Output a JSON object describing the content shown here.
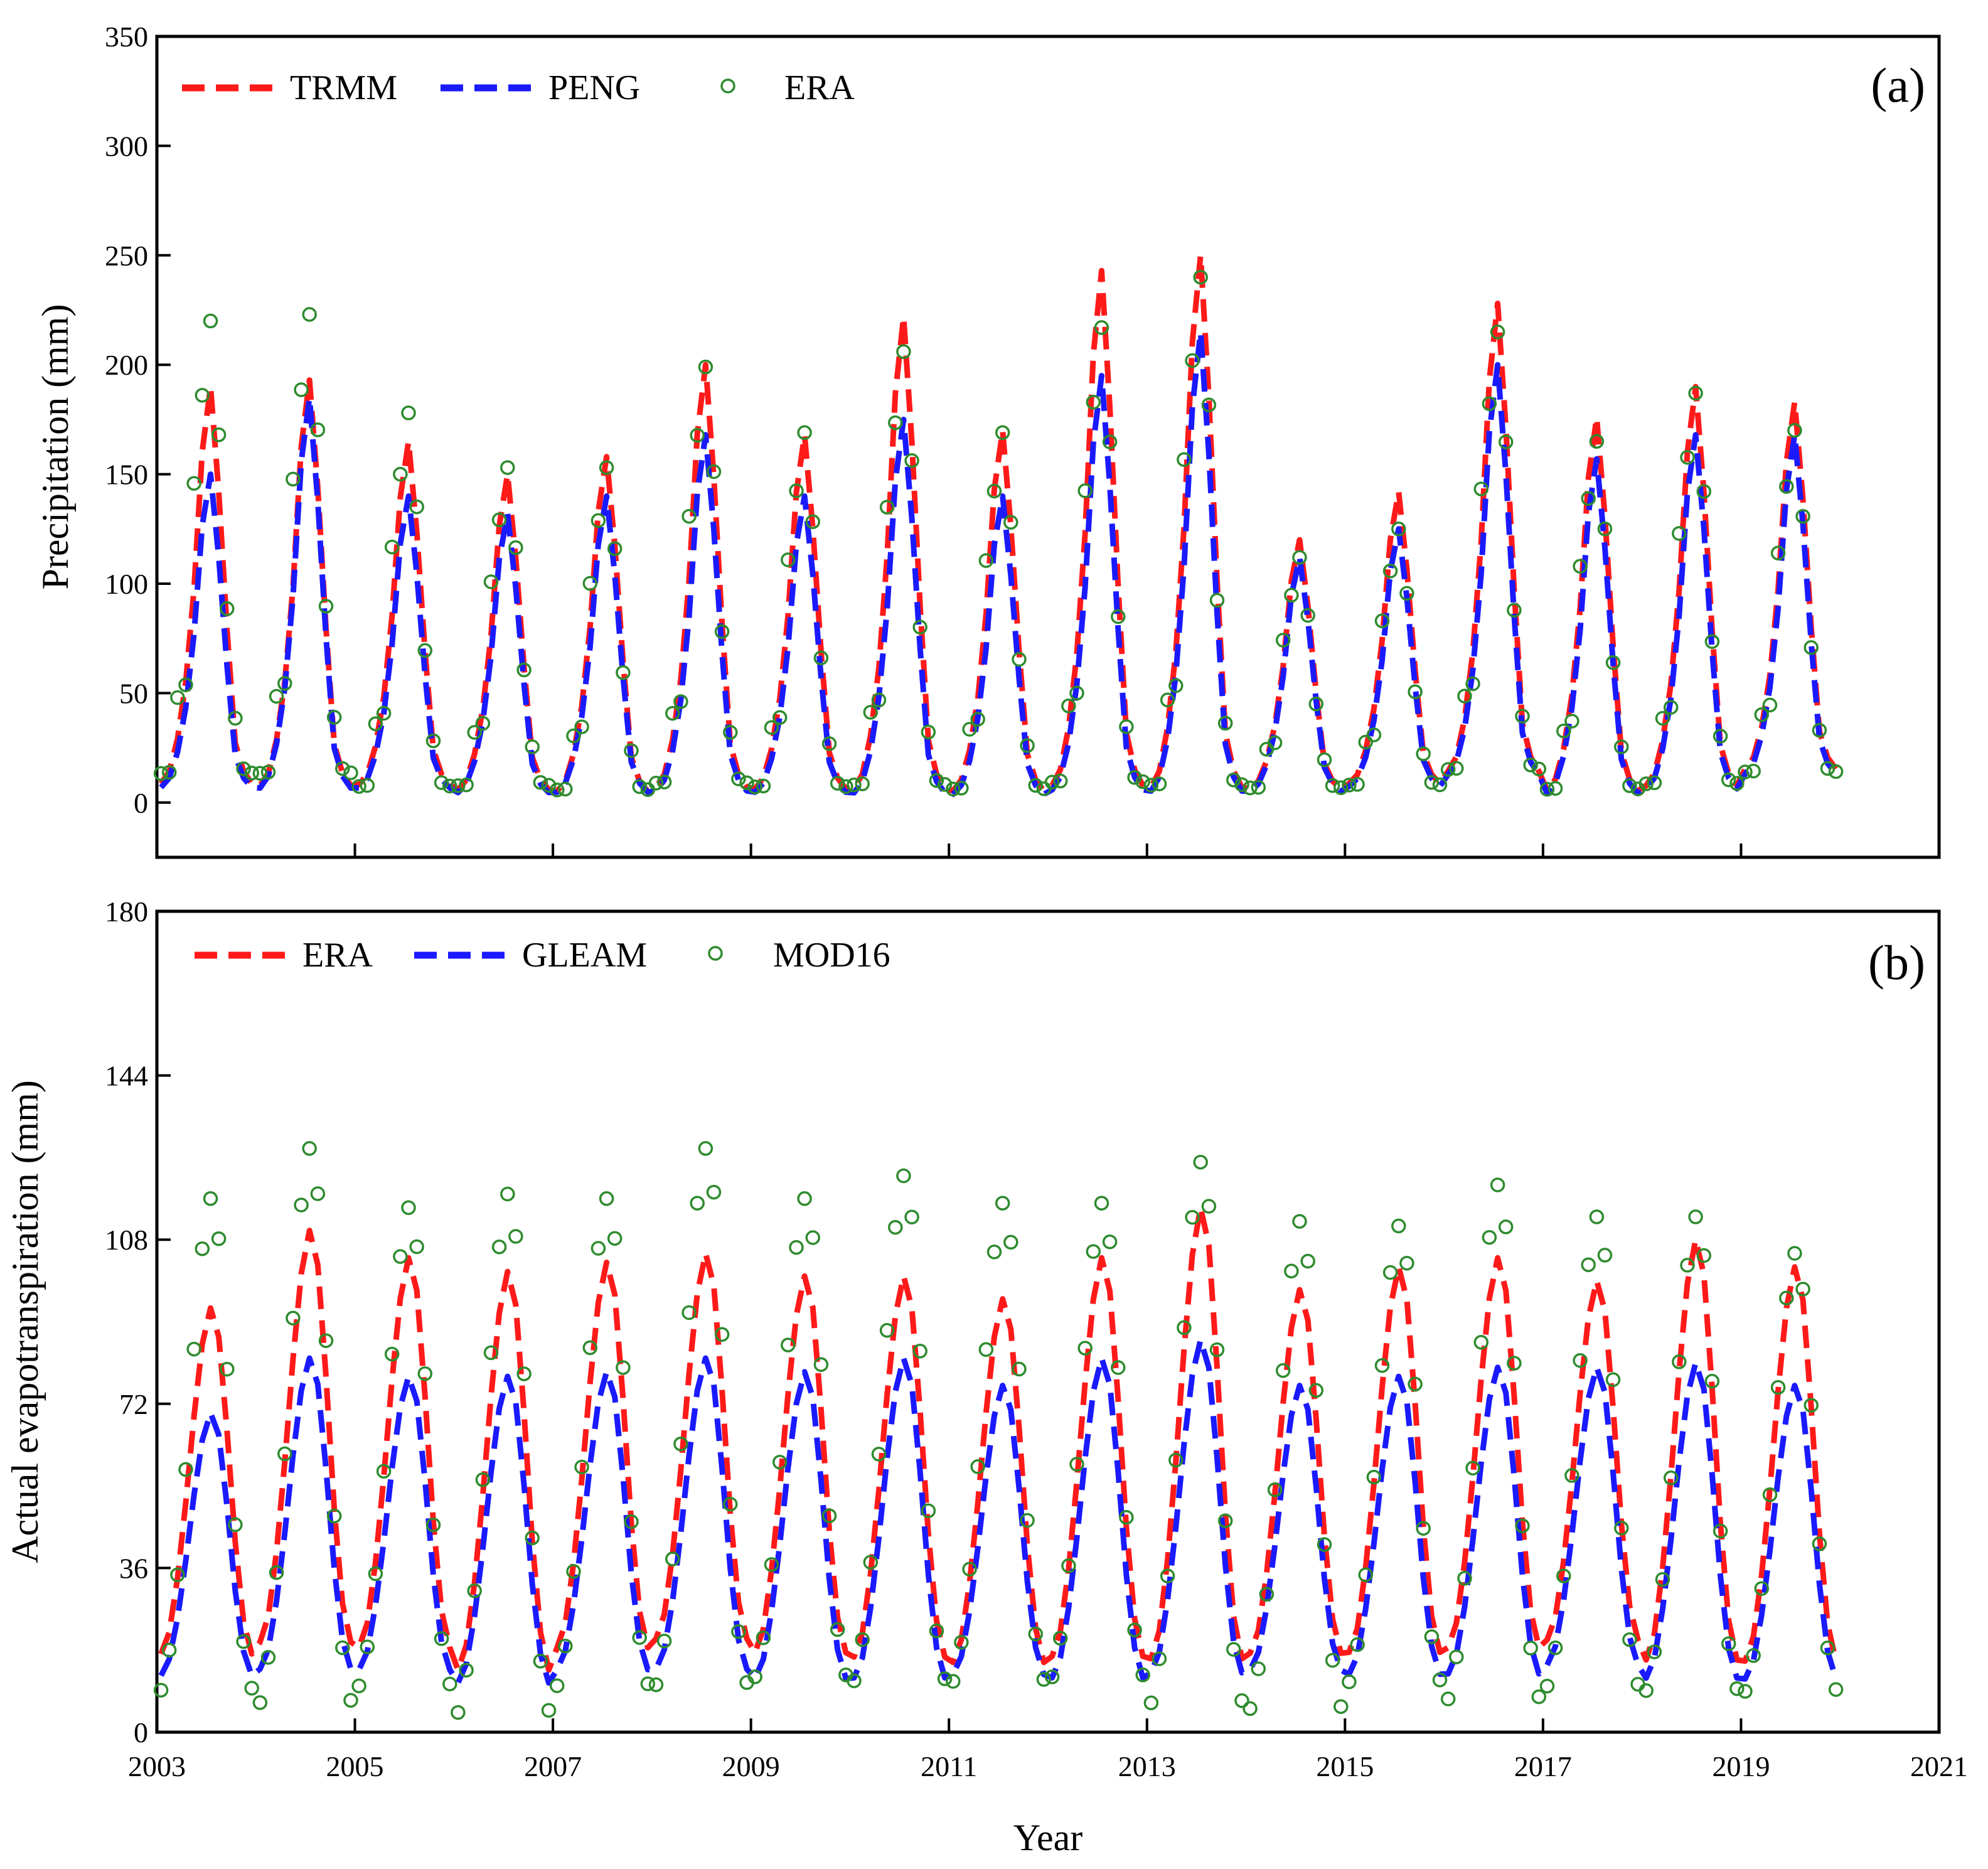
{
  "figure": {
    "xlabel": "Year",
    "x_ticks": [
      2003,
      2005,
      2007,
      2009,
      2011,
      2013,
      2015,
      2017,
      2019,
      2021
    ]
  },
  "chart_data": [
    {
      "type": "line",
      "panel_label": "(a)",
      "title": "",
      "xlabel": "Year",
      "ylabel": "Precipitation (mm)",
      "xlim": [
        2003,
        2021
      ],
      "ylim": [
        -25,
        350
      ],
      "y_ticks": [
        0,
        50,
        100,
        150,
        200,
        250,
        300,
        350
      ],
      "legend": "top-left",
      "series": [
        {
          "name": "TRMM",
          "style": "dashed-line",
          "color": "#ff1a1a",
          "annual_peaks": [
            190,
            193,
            165,
            150,
            158,
            200,
            168,
            222,
            170,
            243,
            250,
            120,
            142,
            228,
            176,
            190,
            183
          ],
          "annual_lows": [
            5,
            4,
            5,
            3,
            2,
            3,
            3,
            2,
            2,
            3,
            2,
            4,
            6,
            10,
            2,
            4,
            12
          ]
        },
        {
          "name": "PENG",
          "style": "dashed-line",
          "color": "#1a1aff",
          "annual_peaks": [
            150,
            185,
            140,
            132,
            140,
            168,
            140,
            175,
            140,
            195,
            215,
            112,
            125,
            200,
            157,
            168,
            168
          ],
          "annual_lows": [
            4,
            3,
            4,
            2,
            2,
            2,
            2,
            1,
            1,
            2,
            1,
            3,
            5,
            9,
            1,
            3,
            10
          ]
        },
        {
          "name": "ERA",
          "style": "open-circle",
          "color": "#2e8b2e",
          "annual_peaks": [
            220,
            223,
            178,
            153,
            153,
            199,
            169,
            206,
            169,
            217,
            240,
            112,
            125,
            215,
            165,
            187,
            170
          ],
          "annual_lows": [
            8,
            8,
            3,
            4,
            2,
            4,
            3,
            3,
            2,
            4,
            2,
            4,
            5,
            10,
            2,
            4,
            10
          ]
        }
      ]
    },
    {
      "type": "line",
      "panel_label": "(b)",
      "title": "",
      "xlabel": "Year",
      "ylabel": "Actual evapotranspiration (mm)",
      "xlim": [
        2003,
        2021
      ],
      "ylim": [
        0,
        180
      ],
      "y_ticks": [
        0,
        36,
        72,
        108,
        144,
        180
      ],
      "legend": "top-left",
      "series": [
        {
          "name": "ERA",
          "style": "dashed-line",
          "color": "#ff1a1a",
          "annual_peaks": [
            93,
            110,
            104,
            101,
            103,
            105,
            100,
            100,
            95,
            104,
            115,
            97,
            102,
            104,
            99,
            108,
            102
          ],
          "annual_lows": [
            14,
            16,
            15,
            10,
            15,
            17,
            14,
            13,
            12,
            13,
            12,
            14,
            14,
            15,
            17,
            12,
            12
          ]
        },
        {
          "name": "GLEAM",
          "style": "dashed-line",
          "color": "#1a1aff",
          "annual_peaks": [
            70,
            82,
            78,
            78,
            79,
            82,
            79,
            82,
            76,
            82,
            86,
            76,
            78,
            80,
            80,
            81,
            76
          ],
          "annual_lows": [
            10,
            11,
            11,
            8,
            11,
            11,
            9,
            9,
            10,
            9,
            10,
            11,
            10,
            10,
            12,
            9,
            9
          ]
        },
        {
          "name": "MOD16",
          "style": "open-circle",
          "color": "#2e8b2e",
          "annual_peaks": [
            117,
            128,
            115,
            118,
            117,
            128,
            117,
            122,
            116,
            116,
            125,
            112,
            111,
            120,
            113,
            113,
            105
          ],
          "annual_lows": [
            7,
            4,
            8,
            2,
            8,
            8,
            10,
            9,
            9,
            10,
            4,
            3,
            9,
            5,
            8,
            7,
            7
          ]
        }
      ]
    }
  ]
}
